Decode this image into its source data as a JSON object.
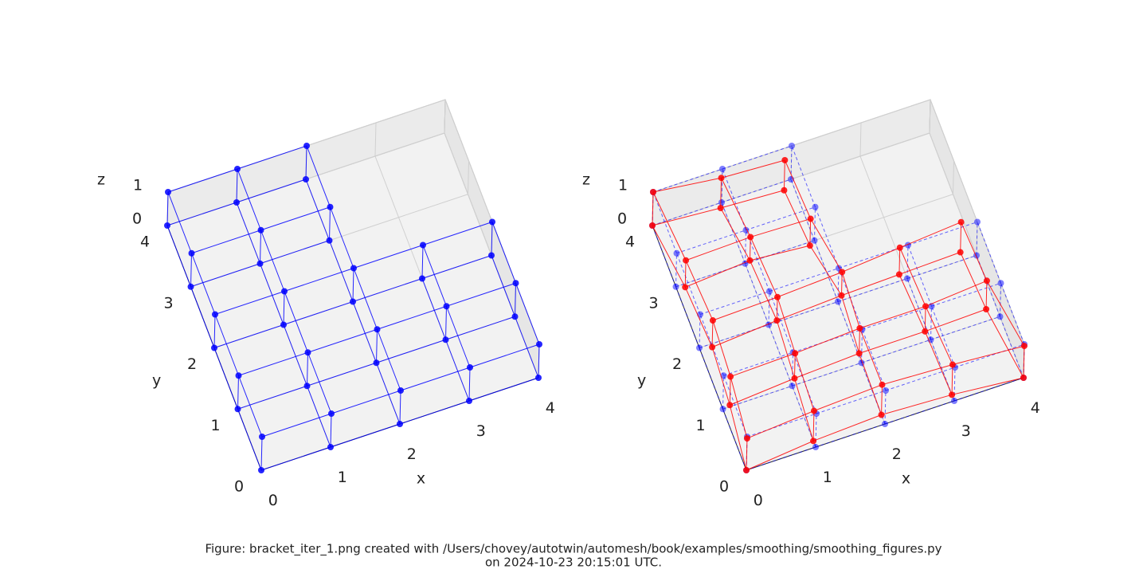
{
  "chart_data": [
    {
      "type": "wireframe3d",
      "xlabel": "x",
      "ylabel": "y",
      "zlabel": "z",
      "xlim": [
        0,
        4
      ],
      "ylim": [
        0,
        4
      ],
      "zlim": [
        0,
        1
      ],
      "xticks": [
        0,
        1,
        2,
        3,
        4
      ],
      "yticks": [
        0,
        1,
        2,
        3,
        4
      ],
      "zticks": [
        0,
        1
      ],
      "series": [
        {
          "color": "#0000ff",
          "dashed": false,
          "x": [
            0,
            1,
            2,
            3,
            4,
            0,
            1,
            2,
            3,
            4,
            0,
            1,
            2,
            3,
            4,
            0,
            1,
            2,
            0,
            1,
            2,
            0,
            1,
            2,
            3,
            4,
            0,
            1,
            2,
            3,
            4,
            0,
            1,
            2,
            3,
            4,
            0,
            1,
            2,
            0,
            1,
            2
          ],
          "y": [
            0,
            0,
            0,
            0,
            0,
            1,
            1,
            1,
            1,
            1,
            2,
            2,
            2,
            2,
            2,
            3,
            3,
            3,
            4,
            4,
            4,
            0,
            0,
            0,
            0,
            0,
            1,
            1,
            1,
            1,
            1,
            2,
            2,
            2,
            2,
            2,
            3,
            3,
            3,
            4,
            4,
            4
          ],
          "z": [
            0,
            0,
            0,
            0,
            0,
            0,
            0,
            0,
            0,
            0,
            0,
            0,
            0,
            0,
            0,
            0,
            0,
            0,
            0,
            0,
            0,
            1,
            1,
            1,
            1,
            1,
            1,
            1,
            1,
            1,
            1,
            1,
            1,
            1,
            1,
            1,
            1,
            1,
            1,
            1,
            1,
            1
          ]
        }
      ]
    },
    {
      "type": "wireframe3d",
      "xlabel": "x",
      "ylabel": "y",
      "zlabel": "z",
      "xlim": [
        0,
        4
      ],
      "ylim": [
        0,
        4
      ],
      "zlim": [
        0,
        1
      ],
      "xticks": [
        0,
        1,
        2,
        3,
        4
      ],
      "yticks": [
        0,
        1,
        2,
        3,
        4
      ],
      "zticks": [
        0,
        1
      ],
      "series": [
        {
          "color": "#0000ff",
          "dashed": true,
          "x": [
            0,
            1,
            2,
            3,
            4,
            0,
            1,
            2,
            3,
            4,
            0,
            1,
            2,
            3,
            4,
            0,
            1,
            2,
            0,
            1,
            2,
            0,
            1,
            2,
            3,
            4,
            0,
            1,
            2,
            3,
            4,
            0,
            1,
            2,
            3,
            4,
            0,
            1,
            2,
            0,
            1,
            2
          ],
          "y": [
            0,
            0,
            0,
            0,
            0,
            1,
            1,
            1,
            1,
            1,
            2,
            2,
            2,
            2,
            2,
            3,
            3,
            3,
            4,
            4,
            4,
            0,
            0,
            0,
            0,
            0,
            1,
            1,
            1,
            1,
            1,
            2,
            2,
            2,
            2,
            2,
            3,
            3,
            3,
            4,
            4,
            4
          ],
          "z": [
            0,
            0,
            0,
            0,
            0,
            0,
            0,
            0,
            0,
            0,
            0,
            0,
            0,
            0,
            0,
            0,
            0,
            0,
            0,
            0,
            0,
            1,
            1,
            1,
            1,
            1,
            1,
            1,
            1,
            1,
            1,
            1,
            1,
            1,
            1,
            1,
            1,
            1,
            1,
            1,
            1,
            1
          ]
        },
        {
          "color": "#ff0000",
          "dashed": false,
          "x": [
            0,
            1,
            2,
            3,
            4,
            0.1,
            1.05,
            2,
            2.95,
            3.85,
            0.15,
            1.1,
            2.05,
            2.9,
            3.8,
            0.1,
            1.05,
            1.9,
            0,
            0.95,
            1.85,
            0,
            1,
            2,
            3,
            4,
            0.1,
            1.05,
            2,
            2.95,
            3.85,
            0.15,
            1.1,
            2.05,
            2.9,
            3.8,
            0.1,
            1.05,
            1.9,
            0,
            0.95,
            1.85
          ],
          "y": [
            0,
            0.1,
            0.15,
            0.1,
            0,
            1,
            1.05,
            1.1,
            1.1,
            1.15,
            1.9,
            1.95,
            2,
            2.05,
            2.1,
            2.9,
            2.95,
            2.9,
            4,
            3.9,
            3.85,
            0,
            0.1,
            0.15,
            0.1,
            0,
            1,
            1.05,
            1.1,
            1.1,
            1.15,
            1.9,
            1.95,
            2,
            2.05,
            2.1,
            2.9,
            2.95,
            2.9,
            4,
            3.9,
            3.85
          ],
          "z": [
            0,
            0,
            0,
            0,
            0,
            0.05,
            0.1,
            0.1,
            0.1,
            0.05,
            0.1,
            0.15,
            0.15,
            0.1,
            0.05,
            0.1,
            0.15,
            0.1,
            0,
            0.05,
            0.05,
            0.95,
            0.9,
            0.9,
            0.9,
            0.95,
            0.9,
            0.85,
            0.85,
            0.85,
            0.9,
            0.9,
            0.85,
            0.85,
            0.9,
            0.95,
            0.9,
            0.85,
            0.9,
            1,
            0.95,
            0.95
          ]
        }
      ]
    }
  ],
  "caption": [
    "Figure: bracket_iter_1.png created with /Users/chovey/autotwin/automesh/book/examples/smoothing/smoothing_figures.py",
    "on 2024-10-23 20:15:01 UTC."
  ]
}
